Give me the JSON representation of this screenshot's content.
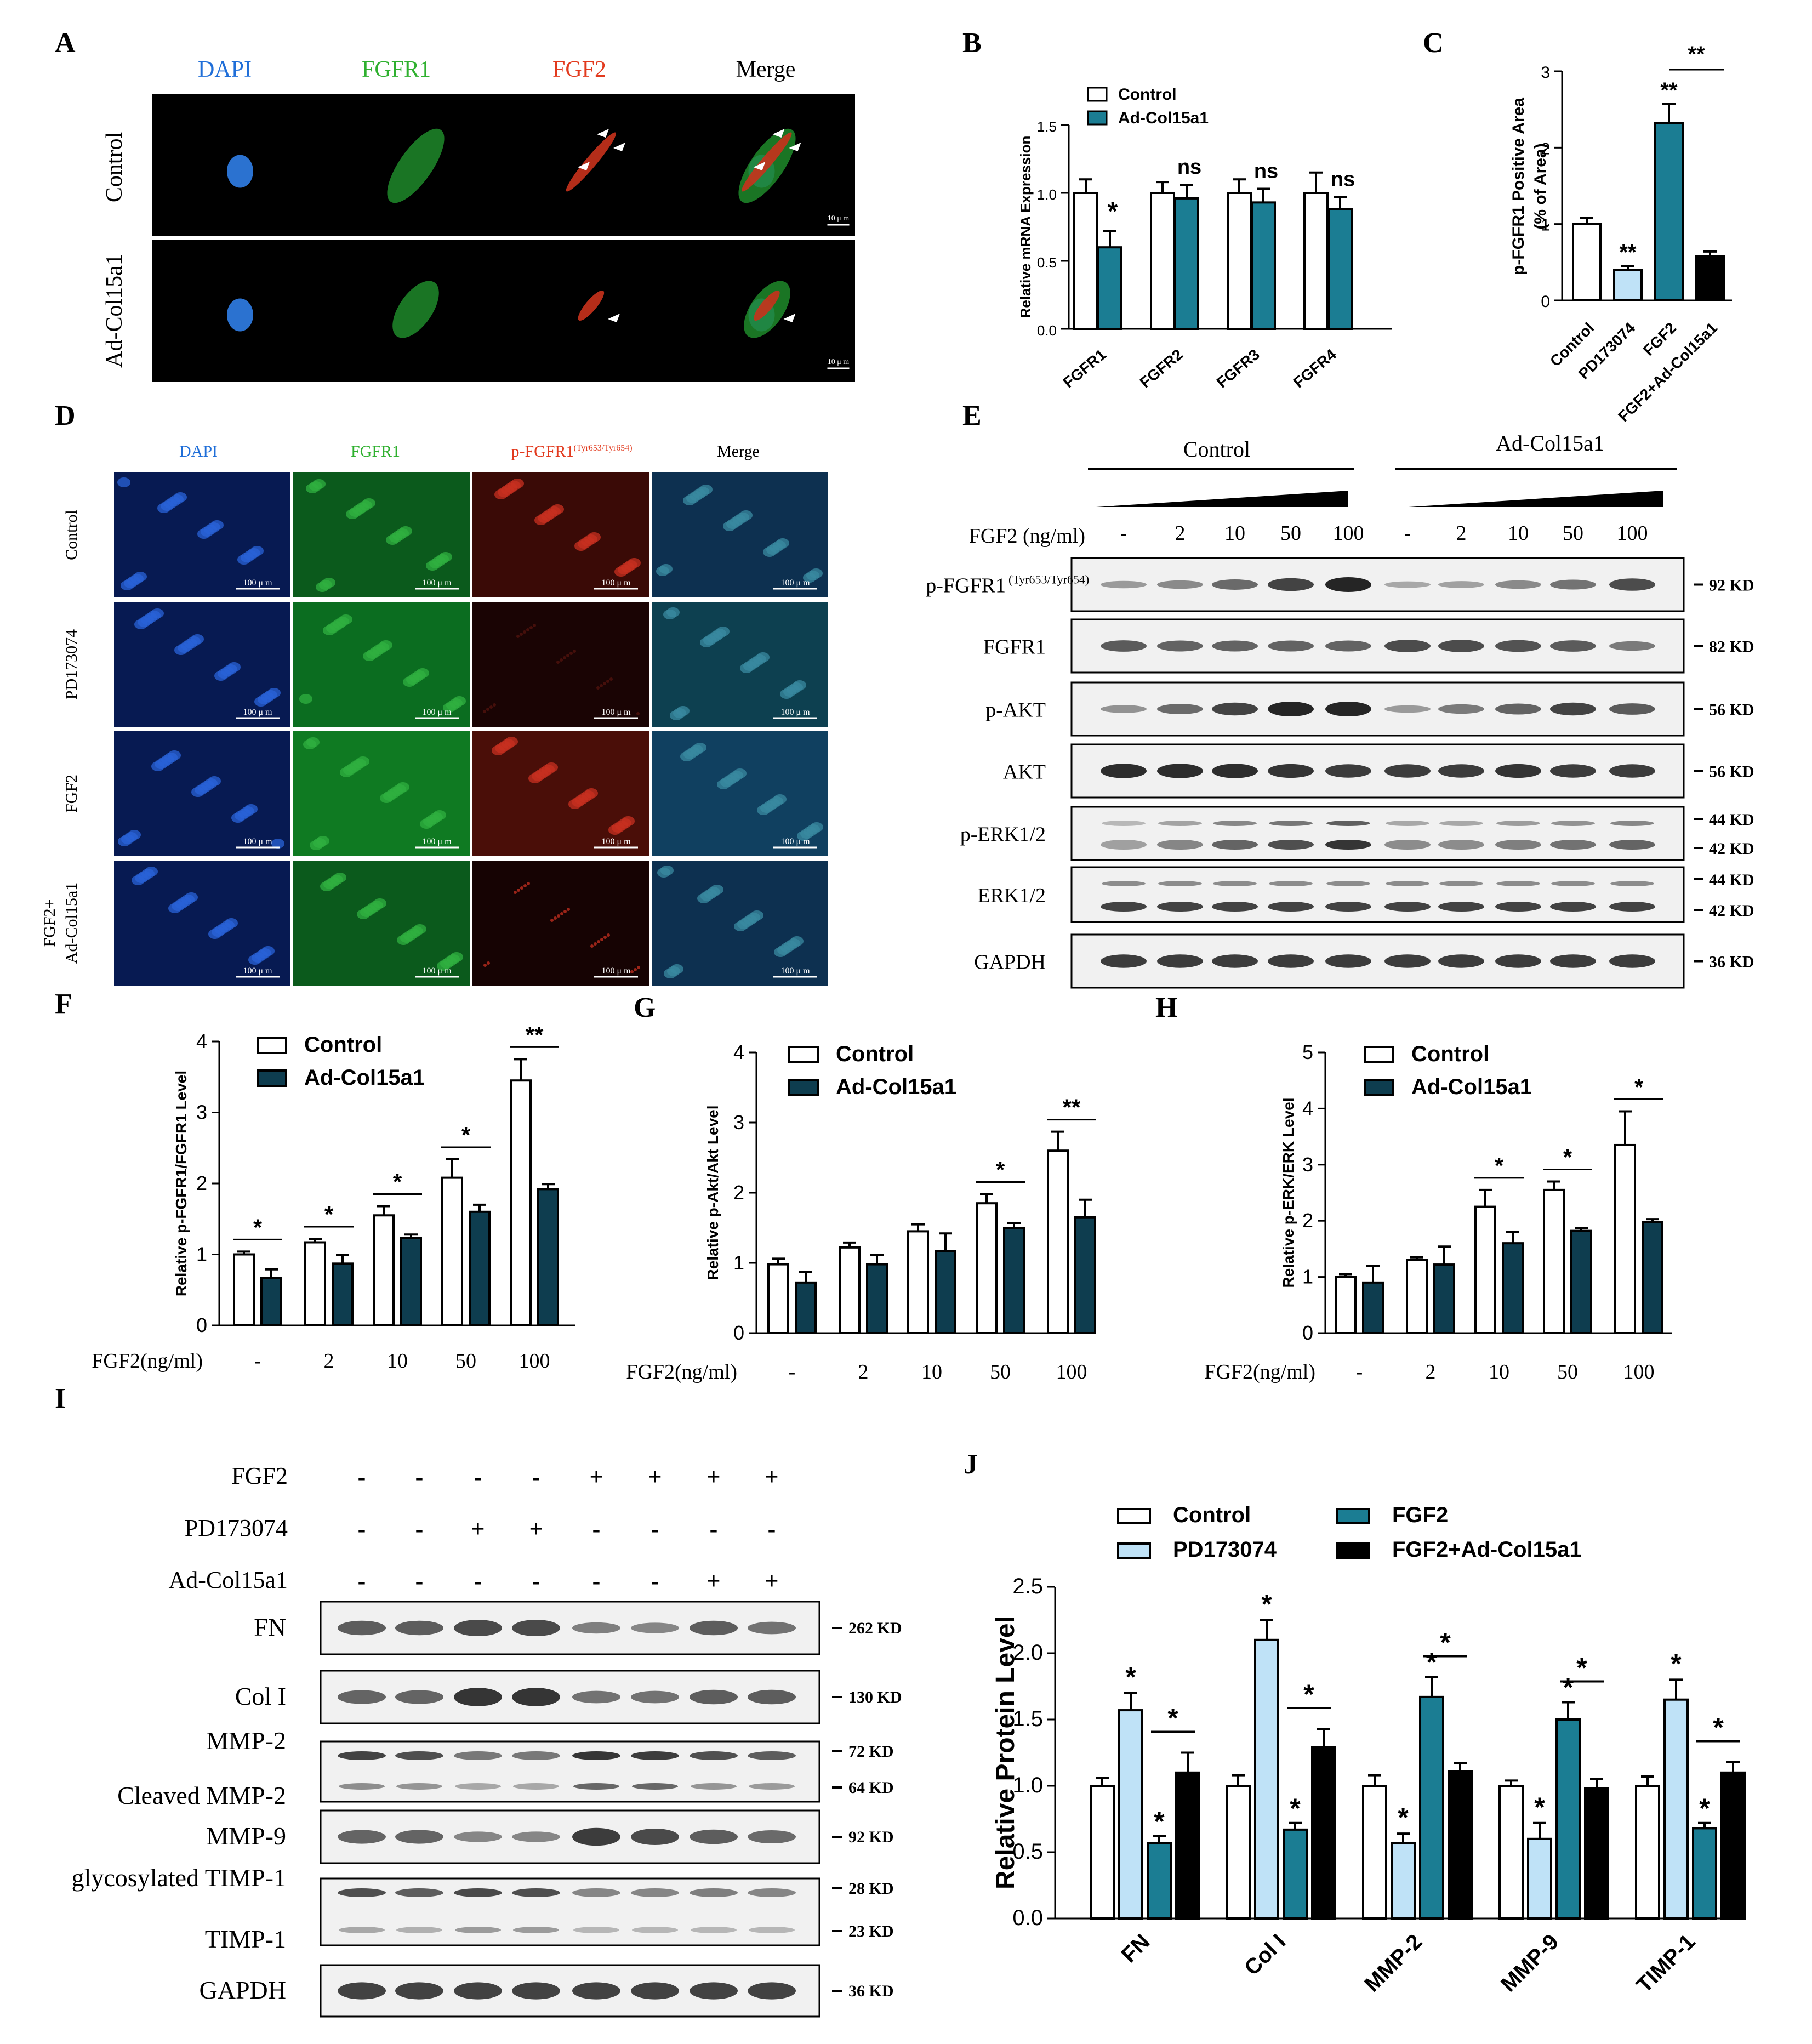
{
  "colors": {
    "control": "#ffffff",
    "treat": "#1b7d93",
    "treat_dark": "#0e3d4f",
    "pd": "#bfe2f7",
    "black": "#000000",
    "dapi": "#1f6ed8",
    "green": "#2fb02f",
    "red": "#e23a1e"
  },
  "panelA": {
    "letter": "A",
    "cols": [
      "DAPI",
      "FGFR1",
      "FGF2",
      "Merge"
    ],
    "rows": [
      "Control",
      "Ad-Col15a1"
    ],
    "scale": "10 μ m"
  },
  "panelD": {
    "letter": "D",
    "cols": [
      "DAPI",
      "FGFR1",
      "p-FGFR1",
      "Merge"
    ],
    "col3_sup": "(Tyr653/Tyr654)",
    "rows": [
      "Control",
      "PD173074",
      "FGF2",
      "FGF2+",
      "Ad-Col15a1"
    ],
    "scale": "100 μ m"
  },
  "panelE": {
    "letter": "E",
    "groups": [
      "Control",
      "Ad-Col15a1"
    ],
    "dose_label": "FGF2 (ng/ml)",
    "doses": [
      "-",
      "2",
      "10",
      "50",
      "100",
      "-",
      "2",
      "10",
      "50",
      "100"
    ],
    "rows": [
      {
        "label": "p-FGFR1",
        "sup": "(Tyr653/Tyr654)",
        "kd": [
          "92 KD"
        ]
      },
      {
        "label": "FGFR1",
        "sup": "",
        "kd": [
          "82 KD"
        ]
      },
      {
        "label": "p-AKT",
        "sup": "",
        "kd": [
          "56 KD"
        ]
      },
      {
        "label": "AKT",
        "sup": "",
        "kd": [
          "56 KD"
        ]
      },
      {
        "label": "p-ERK1/2",
        "sup": "",
        "kd": [
          "44 KD",
          "42 KD"
        ]
      },
      {
        "label": "ERK1/2",
        "sup": "",
        "kd": [
          "44 KD",
          "42 KD"
        ]
      },
      {
        "label": "GAPDH",
        "sup": "",
        "kd": [
          "36 KD"
        ]
      }
    ]
  },
  "panelI": {
    "letter": "I",
    "treat_rows": [
      {
        "label": "FGF2",
        "signs": [
          "-",
          "-",
          "-",
          "-",
          "+",
          "+",
          "+",
          "+"
        ]
      },
      {
        "label": "PD173074",
        "signs": [
          "-",
          "-",
          "+",
          "+",
          "-",
          "-",
          "-",
          "-"
        ]
      },
      {
        "label": "Ad-Col15a1",
        "signs": [
          "-",
          "-",
          "-",
          "-",
          "-",
          "-",
          "+",
          "+"
        ]
      }
    ],
    "blots": [
      {
        "labels": [
          "FN"
        ],
        "kd": [
          "262 KD"
        ]
      },
      {
        "labels": [
          "Col I"
        ],
        "kd": [
          "130 KD"
        ]
      },
      {
        "labels": [
          "MMP-2",
          "Cleaved MMP-2"
        ],
        "kd": [
          "72 KD",
          "64 KD"
        ]
      },
      {
        "labels": [
          "MMP-9"
        ],
        "kd": [
          "92 KD"
        ]
      },
      {
        "labels": [
          "glycosylated TIMP-1",
          "TIMP-1"
        ],
        "kd": [
          "28 KD",
          "23 KD"
        ]
      },
      {
        "labels": [
          "GAPDH"
        ],
        "kd": [
          "36 KD"
        ]
      }
    ]
  },
  "chart_data": [
    {
      "panel": "B",
      "type": "bar",
      "ylabel": "Relative mRNA Expression",
      "ylim": [
        0,
        1.5
      ],
      "yticks": [
        "0.0",
        "0.5",
        "1.0",
        "1.5"
      ],
      "categories": [
        "FGFR1",
        "FGFR2",
        "FGFR3",
        "FGFR4"
      ],
      "series": [
        {
          "name": "Control",
          "values": [
            1.0,
            1.0,
            1.0,
            1.0
          ],
          "err": [
            0.1,
            0.08,
            0.1,
            0.15
          ]
        },
        {
          "name": "Ad-Col15a1",
          "values": [
            0.6,
            0.96,
            0.93,
            0.88
          ],
          "err": [
            0.12,
            0.1,
            0.1,
            0.09
          ]
        }
      ],
      "sig": [
        "*",
        "ns",
        "ns",
        "ns"
      ]
    },
    {
      "panel": "C",
      "type": "bar",
      "ylabel": "p-FGFR1 Positive Area",
      "ylabel2": "(% of Area)",
      "ylim": [
        0,
        3
      ],
      "yticks": [
        "0",
        "1",
        "2",
        "3"
      ],
      "categories": [
        "Control",
        "PD173074",
        "FGF2",
        "FGF2+Ad-Col15a1"
      ],
      "values": [
        1.0,
        0.4,
        2.32,
        0.58
      ],
      "err": [
        0.08,
        0.05,
        0.25,
        0.06
      ],
      "sig": [
        "",
        "**",
        "**",
        ""
      ],
      "bracket": "**"
    },
    {
      "panel": "F",
      "type": "bar",
      "ylabel": "Relative p-FGFR1/FGFR1 Level",
      "xlabel": "FGF2(ng/ml)",
      "ylim": [
        0,
        4
      ],
      "yticks": [
        "0",
        "1",
        "2",
        "3",
        "4"
      ],
      "categories": [
        "-",
        "2",
        "10",
        "50",
        "100"
      ],
      "series": [
        {
          "name": "Control",
          "values": [
            1.0,
            1.17,
            1.55,
            2.08,
            3.45
          ],
          "err": [
            0.04,
            0.05,
            0.13,
            0.26,
            0.3
          ]
        },
        {
          "name": "Ad-Col15a1",
          "values": [
            0.67,
            0.87,
            1.23,
            1.6,
            1.92
          ],
          "err": [
            0.12,
            0.12,
            0.05,
            0.1,
            0.07
          ]
        }
      ],
      "sig": [
        "*",
        "*",
        "*",
        "*",
        "**"
      ]
    },
    {
      "panel": "G",
      "type": "bar",
      "ylabel": "Relative p-Akt/Akt Level",
      "xlabel": "FGF2(ng/ml)",
      "ylim": [
        0,
        4
      ],
      "yticks": [
        "0",
        "1",
        "2",
        "3",
        "4"
      ],
      "categories": [
        "-",
        "2",
        "10",
        "50",
        "100"
      ],
      "series": [
        {
          "name": "Control",
          "values": [
            0.98,
            1.22,
            1.45,
            1.85,
            2.6
          ],
          "err": [
            0.08,
            0.07,
            0.1,
            0.13,
            0.27
          ]
        },
        {
          "name": "Ad-Col15a1",
          "values": [
            0.72,
            0.98,
            1.17,
            1.5,
            1.65
          ],
          "err": [
            0.15,
            0.13,
            0.25,
            0.07,
            0.25
          ]
        }
      ],
      "sig": [
        "",
        "",
        "",
        "*",
        "**"
      ]
    },
    {
      "panel": "H",
      "type": "bar",
      "ylabel": "Relative p-ERK/ERK Level",
      "xlabel": "FGF2(ng/ml)",
      "ylim": [
        0,
        5
      ],
      "yticks": [
        "0",
        "1",
        "2",
        "3",
        "4",
        "5"
      ],
      "categories": [
        "-",
        "2",
        "10",
        "50",
        "100"
      ],
      "series": [
        {
          "name": "Control",
          "values": [
            1.0,
            1.3,
            2.25,
            2.55,
            3.35
          ],
          "err": [
            0.05,
            0.05,
            0.3,
            0.15,
            0.6
          ]
        },
        {
          "name": "Ad-Col15a1",
          "values": [
            0.9,
            1.22,
            1.6,
            1.82,
            1.98
          ],
          "err": [
            0.3,
            0.32,
            0.2,
            0.05,
            0.05
          ]
        }
      ],
      "sig": [
        "",
        "",
        "*",
        "*",
        "*"
      ]
    },
    {
      "panel": "J",
      "type": "bar",
      "ylabel": "Relative Protein Level",
      "ylim": [
        0,
        2.5
      ],
      "yticks": [
        "0.0",
        "0.5",
        "1.0",
        "1.5",
        "2.0",
        "2.5"
      ],
      "categories": [
        "FN",
        "Col I",
        "MMP-2",
        "MMP-9",
        "TIMP-1"
      ],
      "series": [
        {
          "name": "Control",
          "values": [
            1.0,
            1.0,
            1.0,
            1.0,
            1.0
          ],
          "err": [
            0.06,
            0.08,
            0.08,
            0.04,
            0.07
          ]
        },
        {
          "name": "PD173074",
          "values": [
            1.57,
            2.1,
            0.57,
            0.6,
            1.65
          ]
        },
        {
          "name": "FGF2",
          "values": [
            0.57,
            0.67,
            1.67,
            1.5,
            0.68
          ]
        },
        {
          "name": "FGF2+Ad-Col15a1",
          "values": [
            1.1,
            1.29,
            1.11,
            0.98,
            1.1
          ]
        }
      ],
      "err2": [
        [
          0.13,
          0.15,
          0.07,
          0.12,
          0.15
        ],
        [
          0.05,
          0.05,
          0.15,
          0.13,
          0.04
        ],
        [
          0.15,
          0.14,
          0.06,
          0.07,
          0.08
        ]
      ],
      "sig_pd": [
        "*",
        "*",
        "*",
        "*",
        "*"
      ],
      "sig_fgf2": [
        "*",
        "*",
        "*",
        "*",
        "*"
      ],
      "bracket": [
        "*",
        "*",
        "*",
        "*",
        "*"
      ]
    }
  ]
}
